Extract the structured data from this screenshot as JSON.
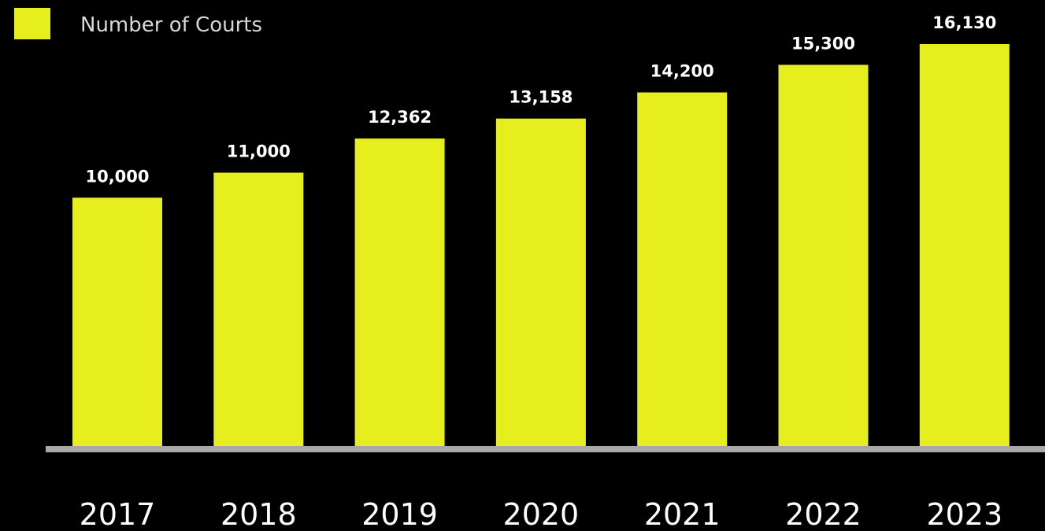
{
  "chart_data": {
    "type": "bar",
    "categories": [
      "2017",
      "2018",
      "2019",
      "2020",
      "2021",
      "2022",
      "2023"
    ],
    "series": [
      {
        "name": "Number of Courts",
        "values": [
          10000,
          11000,
          12362,
          13158,
          14200,
          15300,
          16130
        ],
        "data_labels": [
          "10,000",
          "11,000",
          "12,362",
          "13,158",
          "14,200",
          "15,300",
          "16,130"
        ],
        "color": "#e6ee1e"
      }
    ],
    "title": "",
    "xlabel": "",
    "ylabel": "",
    "ylim": [
      0,
      16130
    ],
    "grid": false,
    "legend_position": "top-left",
    "colors": {
      "background": "#000000",
      "bar": "#e6ee1e",
      "baseline": "#a8a8a8",
      "text": "#ffffff"
    }
  }
}
